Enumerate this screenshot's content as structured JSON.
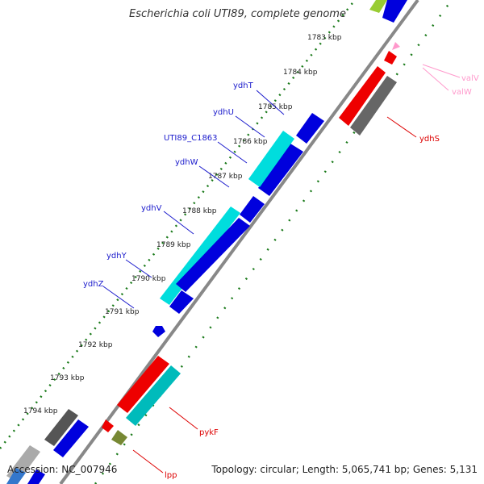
{
  "title": "Escherichia coli UTI89, complete genome",
  "accession": "Accession: NC_007946",
  "summary": "Topology: circular; Length: 5,065,741 bp; Genes: 5,131",
  "colors": {
    "blue": "#0000dd",
    "cyan": "#00dddd",
    "red": "#ee0000",
    "gray": "#666666",
    "olive": "#778833",
    "pink": "#ff99cc",
    "label_blue": "#1a1acc",
    "label_red": "#dd0000",
    "tick_green": "#1a7a1a"
  },
  "ticks": [
    "1783 kbp",
    "1784 kbp",
    "1785 kbp",
    "1786 kbp",
    "1787 kbp",
    "1788 kbp",
    "1789 kbp",
    "1790 kbp",
    "1791 kbp",
    "1792 kbp",
    "1793 kbp",
    "1794 kbp"
  ],
  "genes_left": [
    "ydhT",
    "ydhU",
    "UTI89_C1863",
    "ydhW",
    "ydhV",
    "ydhY",
    "ydhZ"
  ],
  "genes_right": [
    "valV",
    "valW",
    "ydhS",
    "pykF",
    "lpp"
  ]
}
